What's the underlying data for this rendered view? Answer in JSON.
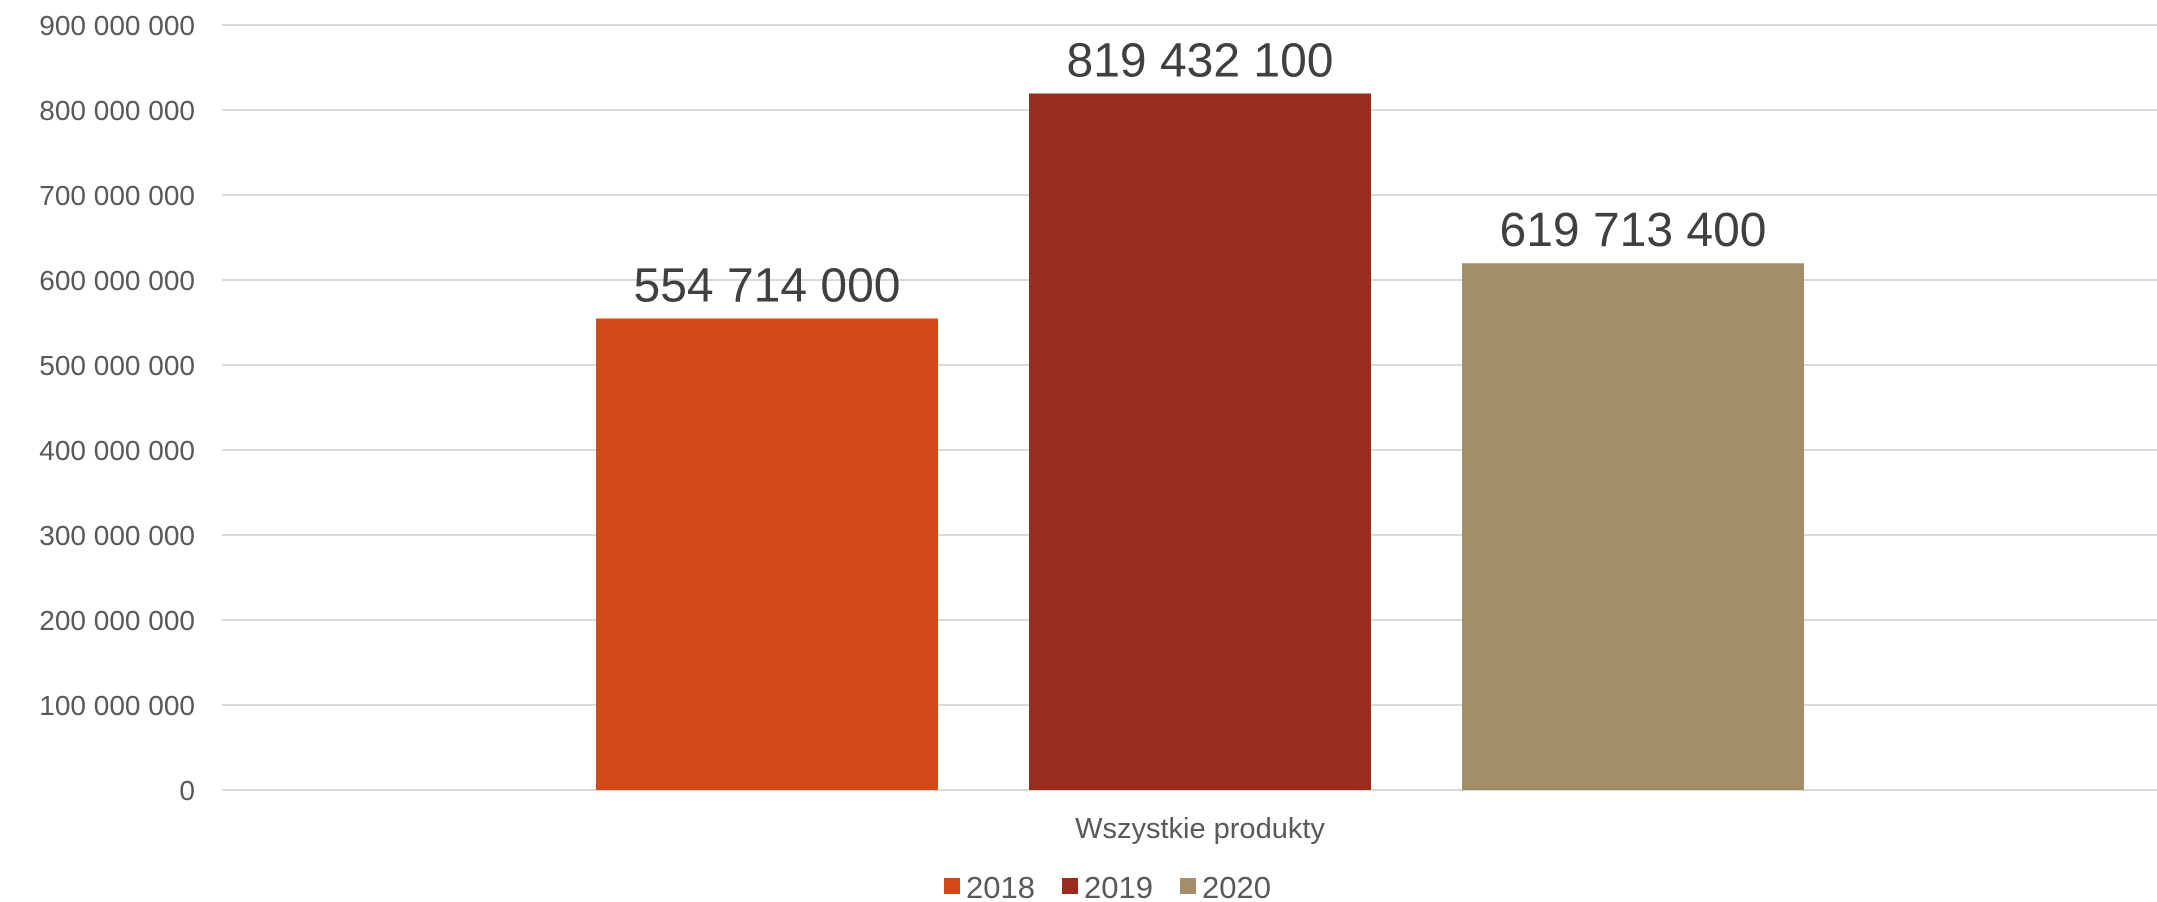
{
  "chart_data": {
    "type": "bar",
    "title": "",
    "xlabel": "",
    "ylabel": "",
    "categories": [
      "Wszystkie produkty"
    ],
    "series": [
      {
        "name": "2018",
        "values": [
          554714000
        ],
        "value_label": "554 714 000",
        "color": "#D24A18"
      },
      {
        "name": "2019",
        "values": [
          819432100
        ],
        "value_label": "819 432 100",
        "color": "#9A2C1E"
      },
      {
        "name": "2020",
        "values": [
          619713400
        ],
        "value_label": "619 713 400",
        "color": "#A38E6A"
      }
    ],
    "ylim": [
      0,
      900000000
    ],
    "yticks": [
      {
        "value": 0,
        "label": "0"
      },
      {
        "value": 100000000,
        "label": "100 000 000"
      },
      {
        "value": 200000000,
        "label": "200 000 000"
      },
      {
        "value": 300000000,
        "label": "300 000 000"
      },
      {
        "value": 400000000,
        "label": "400 000 000"
      },
      {
        "value": 500000000,
        "label": "500 000 000"
      },
      {
        "value": 600000000,
        "label": "600 000 000"
      },
      {
        "value": 700000000,
        "label": "700 000 000"
      },
      {
        "value": 800000000,
        "label": "800 000 000"
      },
      {
        "value": 900000000,
        "label": "900 000 000"
      }
    ],
    "grid": true,
    "gridline_color": "#D9D9D9",
    "legend": "bottom"
  }
}
